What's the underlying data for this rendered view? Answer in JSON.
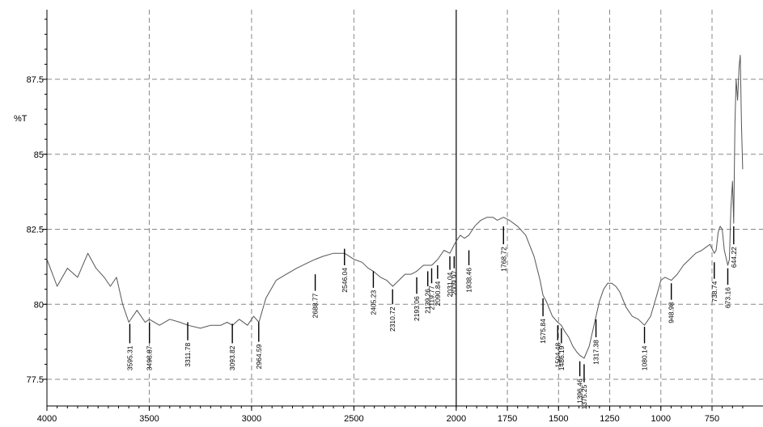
{
  "chart_data": {
    "type": "line",
    "title": "",
    "xlabel": "",
    "ylabel": "%T",
    "xlim": [
      4000,
      600
    ],
    "x_reversed": true,
    "ylim": [
      76.6,
      90.5
    ],
    "grid": true,
    "x_ticks": [
      4000,
      3500,
      3000,
      2500,
      2000,
      1750,
      1500,
      1250,
      1000,
      750
    ],
    "x_tick_labels": [
      "4000",
      "3500",
      "3000",
      "2500",
      "2000",
      "1750",
      "1500",
      "1250",
      "1000",
      "750"
    ],
    "y_ticks": [
      77.5,
      80,
      82.5,
      85,
      87.5
    ],
    "y_tick_labels": [
      "77.5",
      "80",
      "82.5",
      "85",
      "87.5"
    ],
    "divider_x": 2000,
    "series": [
      {
        "color": "#555555",
        "x": [
          4000,
          3950,
          3900,
          3850,
          3800,
          3760,
          3720,
          3690,
          3660,
          3630,
          3600,
          3580,
          3560,
          3520,
          3500,
          3450,
          3400,
          3350,
          3311,
          3250,
          3200,
          3150,
          3120,
          3093,
          3060,
          3020,
          2990,
          2964,
          2930,
          2880,
          2830,
          2780,
          2720,
          2688,
          2650,
          2600,
          2570,
          2546,
          2500,
          2460,
          2430,
          2405,
          2370,
          2340,
          2310,
          2280,
          2250,
          2220,
          2193,
          2160,
          2139,
          2119,
          2090,
          2060,
          2031,
          2009,
          2000,
          1980,
          1960,
          1938,
          1910,
          1880,
          1850,
          1820,
          1800,
          1769,
          1740,
          1700,
          1660,
          1620,
          1590,
          1576,
          1560,
          1530,
          1504,
          1486,
          1470,
          1450,
          1430,
          1410,
          1396,
          1375,
          1350,
          1330,
          1317,
          1300,
          1280,
          1260,
          1240,
          1220,
          1200,
          1170,
          1140,
          1110,
          1080,
          1050,
          1020,
          1000,
          980,
          949,
          920,
          890,
          860,
          830,
          800,
          780,
          760,
          739,
          730,
          720,
          710,
          700,
          690,
          673,
          665,
          658,
          650,
          644,
          638,
          632,
          625,
          618,
          612,
          606,
          600
        ],
        "y": [
          81.5,
          80.6,
          81.2,
          80.9,
          81.7,
          81.2,
          80.9,
          80.6,
          80.9,
          80.0,
          79.4,
          79.6,
          79.8,
          79.4,
          79.5,
          79.3,
          79.5,
          79.4,
          79.3,
          79.2,
          79.3,
          79.3,
          79.4,
          79.3,
          79.5,
          79.3,
          79.6,
          79.4,
          80.2,
          80.8,
          81.0,
          81.2,
          81.4,
          81.5,
          81.6,
          81.7,
          81.7,
          81.7,
          81.5,
          81.4,
          81.2,
          81.1,
          80.9,
          80.8,
          80.6,
          80.8,
          81.0,
          81.0,
          81.1,
          81.3,
          81.3,
          81.3,
          81.5,
          81.8,
          81.7,
          82.0,
          82.1,
          82.3,
          82.2,
          82.3,
          82.6,
          82.8,
          82.9,
          82.9,
          82.8,
          82.9,
          82.8,
          82.6,
          82.3,
          81.6,
          80.8,
          80.3,
          80.1,
          79.6,
          79.4,
          79.3,
          79.1,
          78.9,
          78.6,
          78.4,
          78.3,
          78.2,
          78.6,
          79.2,
          79.6,
          80.1,
          80.5,
          80.7,
          80.7,
          80.6,
          80.4,
          79.9,
          79.6,
          79.5,
          79.3,
          79.6,
          80.3,
          80.8,
          80.9,
          80.8,
          81.0,
          81.3,
          81.5,
          81.7,
          81.8,
          81.9,
          82.0,
          81.7,
          81.8,
          82.4,
          82.6,
          82.5,
          81.8,
          81.3,
          81.5,
          83.2,
          84.1,
          82.7,
          86.0,
          87.5,
          86.8,
          87.9,
          88.3,
          86.0,
          84.5
        ]
      }
    ],
    "peaks": [
      {
        "x": 3595,
        "label": "3595.31",
        "y_top": 79.35,
        "y_bottom": 78.7
      },
      {
        "x": 3499,
        "label": "3498.87",
        "y_top": 79.4,
        "y_bottom": 78.7
      },
      {
        "x": 3312,
        "label": "3311.78",
        "y_top": 79.4,
        "y_bottom": 78.8
      },
      {
        "x": 3094,
        "label": "3093.82",
        "y_top": 79.35,
        "y_bottom": 78.7
      },
      {
        "x": 2965,
        "label": "2964.59",
        "y_top": 79.4,
        "y_bottom": 78.75
      },
      {
        "x": 2689,
        "label": "2688.77",
        "y_top": 81.0,
        "y_bottom": 80.45
      },
      {
        "x": 2546,
        "label": "2546.04",
        "y_top": 81.85,
        "y_bottom": 81.3
      },
      {
        "x": 2405,
        "label": "2405.23",
        "y_top": 81.1,
        "y_bottom": 80.55
      },
      {
        "x": 2311,
        "label": "2310.72",
        "y_top": 80.5,
        "y_bottom": 80.0
      },
      {
        "x": 2193,
        "label": "2193.06",
        "y_top": 80.9,
        "y_bottom": 80.35
      },
      {
        "x": 2139,
        "label": "2139.26",
        "y_top": 81.1,
        "y_bottom": 80.6
      },
      {
        "x": 2120,
        "label": "2119.77",
        "y_top": 81.2,
        "y_bottom": 80.7
      },
      {
        "x": 2091,
        "label": "2090.84",
        "y_top": 81.3,
        "y_bottom": 80.85
      },
      {
        "x": 2031,
        "label": "2031.04",
        "y_top": 81.6,
        "y_bottom": 81.15
      },
      {
        "x": 2010,
        "label": "2009.97",
        "y_top": 81.6,
        "y_bottom": 81.2
      },
      {
        "x": 1938,
        "label": "1938.46",
        "y_top": 81.8,
        "y_bottom": 81.3
      },
      {
        "x": 1769,
        "label": "1768.72",
        "y_top": 82.6,
        "y_bottom": 82.0
      },
      {
        "x": 1576,
        "label": "1575.84",
        "y_top": 80.2,
        "y_bottom": 79.6
      },
      {
        "x": 1504,
        "label": "1504.48",
        "y_top": 79.3,
        "y_bottom": 78.8
      },
      {
        "x": 1486,
        "label": "1486.19",
        "y_top": 79.2,
        "y_bottom": 78.7
      },
      {
        "x": 1396,
        "label": "1396.46",
        "y_top": 78.1,
        "y_bottom": 77.6
      },
      {
        "x": 1375,
        "label": "1375.25",
        "y_top": 78.0,
        "y_bottom": 77.4
      },
      {
        "x": 1317,
        "label": "1317.38",
        "y_top": 79.5,
        "y_bottom": 78.9
      },
      {
        "x": 1080,
        "label": "1080.14",
        "y_top": 79.25,
        "y_bottom": 78.7
      },
      {
        "x": 949,
        "label": "948.98",
        "y_top": 80.7,
        "y_bottom": 80.15
      },
      {
        "x": 739,
        "label": "738.74",
        "y_top": 81.4,
        "y_bottom": 80.85
      },
      {
        "x": 673,
        "label": "673.16",
        "y_top": 81.2,
        "y_bottom": 80.65
      },
      {
        "x": 644,
        "label": "644.22",
        "y_top": 82.6,
        "y_bottom": 82.0
      }
    ]
  }
}
